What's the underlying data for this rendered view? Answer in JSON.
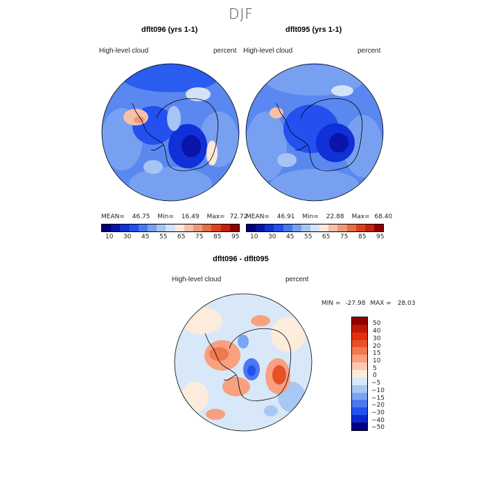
{
  "figure": {
    "title": "DJF"
  },
  "panels": [
    {
      "title": "dflt096 (yrs 1-1)",
      "variable": "High-level cloud",
      "units": "percent",
      "stats": {
        "mean_label": "MEAN=",
        "mean": "46.75",
        "min_label": "Min=",
        "min": "16.49",
        "max_label": "Max=",
        "max": "72.72"
      }
    },
    {
      "title": "dflt095 (yrs 1-1)",
      "variable": "High-level cloud",
      "units": "percent",
      "stats": {
        "mean_label": "MEAN=",
        "mean": "46.91",
        "min_label": "Min=",
        "min": "22.88",
        "max_label": "Max=",
        "max": "68.40"
      }
    },
    {
      "title": "dflt096 - dflt095",
      "variable": "High-level cloud",
      "units": "percent",
      "stats": {
        "min_label": "MIN =",
        "min": "-27.98",
        "max_label": "MAX =",
        "max": "28.03"
      }
    }
  ],
  "chart_data": [
    {
      "type": "heatmap",
      "projection": "south-polar-stereographic",
      "title": "dflt096 (yrs 1-1)",
      "field": "High-level cloud",
      "units": "percent",
      "mean": 46.75,
      "min": 16.49,
      "max": 72.72,
      "colorbar_ticks": [
        "10",
        "30",
        "45",
        "55",
        "65",
        "75",
        "85",
        "95"
      ],
      "colors": [
        "#000080",
        "#0a14a8",
        "#1030d8",
        "#2050f0",
        "#4a78f0",
        "#78a0f0",
        "#a8c4f4",
        "#d4e2f8",
        "#fbe8dc",
        "#f8c0a8",
        "#f09878",
        "#e86c48",
        "#e04020",
        "#c82008",
        "#900000"
      ]
    },
    {
      "type": "heatmap",
      "projection": "south-polar-stereographic",
      "title": "dflt095 (yrs 1-1)",
      "field": "High-level cloud",
      "units": "percent",
      "mean": 46.91,
      "min": 22.88,
      "max": 68.4,
      "colorbar_ticks": [
        "10",
        "30",
        "45",
        "55",
        "65",
        "75",
        "85",
        "95"
      ],
      "colors": [
        "#000080",
        "#0a14a8",
        "#1030d8",
        "#2050f0",
        "#4a78f0",
        "#78a0f0",
        "#a8c4f4",
        "#d4e2f8",
        "#fbe8dc",
        "#f8c0a8",
        "#f09878",
        "#e86c48",
        "#e04020",
        "#c82008",
        "#900000"
      ]
    },
    {
      "type": "heatmap",
      "projection": "south-polar-stereographic",
      "title": "dflt096 - dflt095",
      "field": "High-level cloud",
      "units": "percent",
      "min": -27.98,
      "max": 28.03,
      "colorbar_ticks": [
        "50",
        "40",
        "30",
        "20",
        "15",
        "10",
        "5",
        "0",
        "−5",
        "−10",
        "−15",
        "−20",
        "−30",
        "−40",
        "−50"
      ],
      "colors": [
        "#900000",
        "#c01808",
        "#e03010",
        "#e85028",
        "#f07850",
        "#f8a080",
        "#fcc8b0",
        "#fcecdc",
        "#d8e8f8",
        "#a8c8f4",
        "#7ca4f0",
        "#4c78f0",
        "#2450f0",
        "#0c28c8",
        "#000080"
      ]
    }
  ]
}
